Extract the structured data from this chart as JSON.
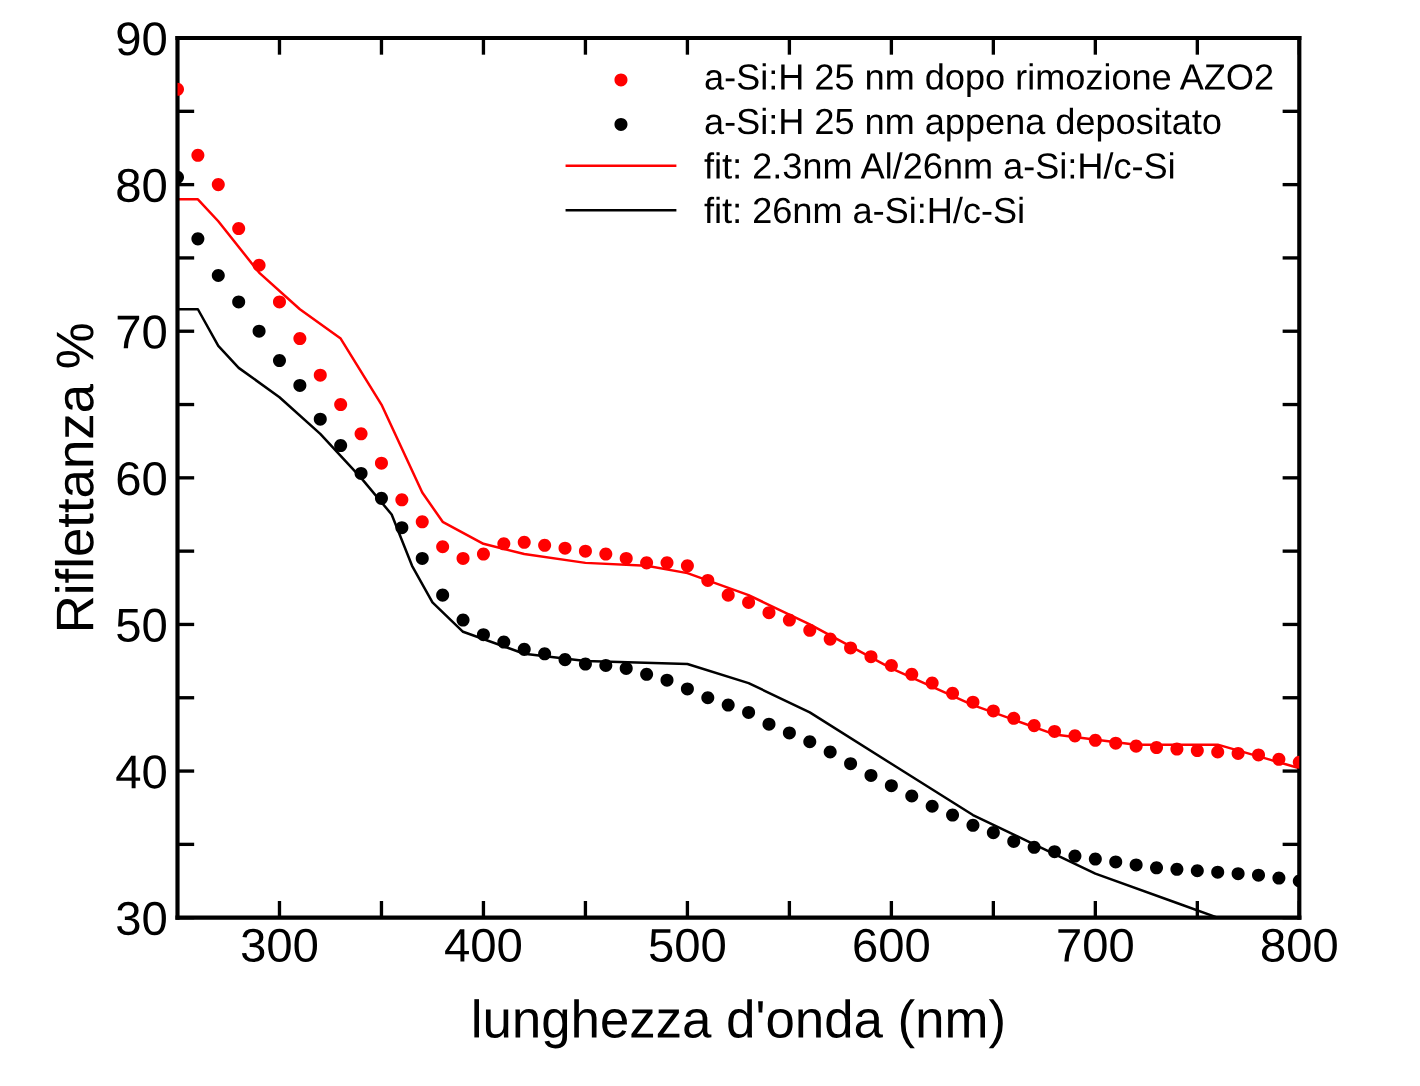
{
  "chart_data": {
    "type": "scatter",
    "xlabel": "lunghezza d'onda (nm)",
    "ylabel": "Riflettanza %",
    "xlim": [
      250,
      800
    ],
    "ylim": [
      30,
      90
    ],
    "xticks": [
      300,
      {
        "value": 350,
        "label": null
      },
      400,
      {
        "value": 450,
        "label": null
      },
      500,
      {
        "value": 550,
        "label": null
      },
      600,
      {
        "value": 650,
        "label": null
      },
      700,
      {
        "value": 750,
        "label": null
      },
      800
    ],
    "yticks": [
      30,
      {
        "value": 35,
        "label": null
      },
      40,
      {
        "value": 45,
        "label": null
      },
      50,
      {
        "value": 55,
        "label": null
      },
      60,
      {
        "value": 65,
        "label": null
      },
      70,
      {
        "value": 75,
        "label": null
      },
      80,
      {
        "value": 85,
        "label": null
      },
      90
    ],
    "grid": false,
    "legend": "top right",
    "marker": "circle",
    "series": [
      {
        "name": "a-Si:H 25 nm dopo rimozione AZO2",
        "color": "#ff0000",
        "x": [
          250,
          260,
          270,
          280,
          290,
          300,
          310,
          320,
          330,
          340,
          350,
          360,
          370,
          380,
          390,
          400,
          410,
          420,
          430,
          440,
          450,
          460,
          470,
          480,
          490,
          500,
          510,
          520,
          530,
          540,
          550,
          560,
          570,
          580,
          590,
          600,
          610,
          620,
          630,
          640,
          650,
          660,
          670,
          680,
          690,
          700,
          710,
          720,
          730,
          740,
          750,
          760,
          770,
          780,
          790,
          800
        ],
        "values": [
          86.5,
          82,
          80,
          77,
          74.5,
          72,
          69.5,
          67,
          65,
          63,
          61,
          58.5,
          57,
          55.3,
          54.5,
          54.8,
          55.5,
          55.6,
          55.4,
          55.2,
          55.0,
          54.8,
          54.5,
          54.2,
          54.2,
          54.0,
          53,
          52,
          51.5,
          50.8,
          50.3,
          49.6,
          49,
          48.4,
          47.8,
          47.2,
          46.6,
          46,
          45.3,
          44.7,
          44.1,
          43.6,
          43.1,
          42.7,
          42.4,
          42.1,
          41.9,
          41.7,
          41.6,
          41.5,
          41.4,
          41.3,
          41.2,
          41.1,
          40.8,
          40.6
        ]
      },
      {
        "name": "a-Si:H 25 nm appena depositato",
        "color": "#000000",
        "x": [
          250,
          260,
          270,
          280,
          290,
          300,
          310,
          320,
          330,
          340,
          350,
          360,
          370,
          380,
          390,
          400,
          410,
          420,
          430,
          440,
          450,
          460,
          470,
          480,
          490,
          500,
          510,
          520,
          530,
          540,
          550,
          560,
          570,
          580,
          590,
          600,
          610,
          620,
          630,
          640,
          650,
          660,
          670,
          680,
          690,
          700,
          710,
          720,
          730,
          740,
          750,
          760,
          770,
          780,
          790,
          800
        ],
        "values": [
          80.5,
          76.3,
          73.8,
          72,
          70,
          68,
          66.3,
          64,
          62.2,
          60.3,
          58.6,
          56.6,
          54.5,
          52,
          50.3,
          49.3,
          48.8,
          48.3,
          48,
          47.6,
          47.3,
          47.2,
          47,
          46.6,
          46.2,
          45.6,
          45,
          44.5,
          44,
          43.2,
          42.6,
          42,
          41.3,
          40.5,
          39.7,
          39,
          38.3,
          37.6,
          37,
          36.3,
          35.8,
          35.2,
          34.8,
          34.5,
          34.2,
          34,
          33.8,
          33.6,
          33.4,
          33.3,
          33.2,
          33.1,
          33,
          32.9,
          32.7,
          32.5
        ]
      },
      {
        "name": "fit: 2.3nm Al/26nm a-Si:H/c-Si",
        "type": "line",
        "color": "#ff0000",
        "marker": "none",
        "line_style": "solid",
        "x": [
          250,
          260,
          270,
          290,
          310,
          330,
          350,
          360,
          370,
          380,
          400,
          420,
          450,
          480,
          500,
          530,
          560,
          600,
          640,
          680,
          720,
          760,
          780,
          800
        ],
        "values": [
          79,
          79,
          77.5,
          74,
          71.5,
          69.5,
          65,
          62,
          59,
          57,
          55.5,
          54.8,
          54.2,
          54,
          53.5,
          52,
          50,
          47,
          44.5,
          42.5,
          41.8,
          41.8,
          41,
          40.2
        ]
      },
      {
        "name": "fit: 26nm a-Si:H/c-Si",
        "type": "line",
        "color": "#000000",
        "marker": "none",
        "line_style": "solid",
        "x": [
          250,
          260,
          270,
          280,
          300,
          320,
          340,
          355,
          365,
          375,
          390,
          420,
          450,
          500,
          530,
          560,
          600,
          640,
          670,
          700,
          740,
          760
        ],
        "values": [
          71.5,
          71.5,
          69,
          67.5,
          65.5,
          63,
          60,
          57.5,
          54,
          51.5,
          49.5,
          48,
          47.5,
          47.3,
          46,
          44,
          40.5,
          37,
          35,
          33,
          31,
          30
        ]
      }
    ]
  }
}
